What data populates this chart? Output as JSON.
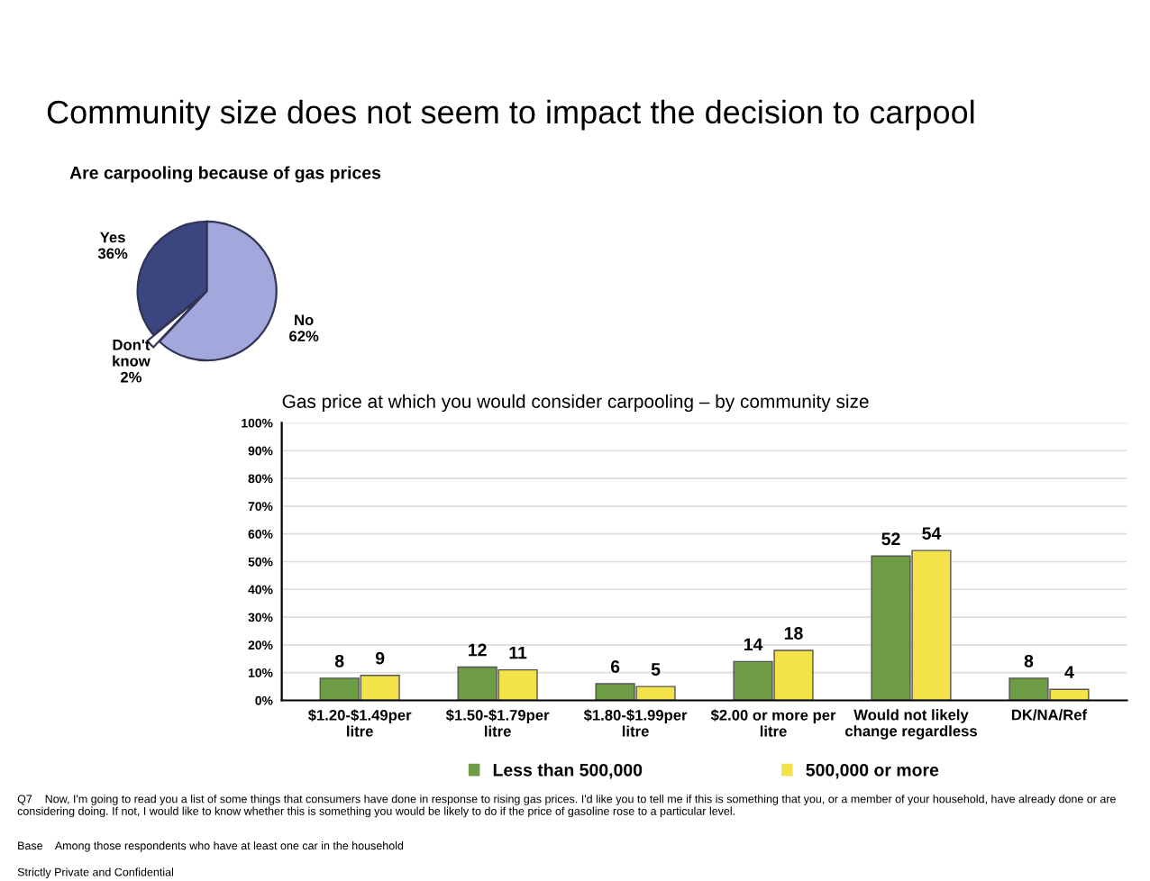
{
  "chart_data": [
    {
      "type": "pie",
      "title": "Are carpooling because of gas prices",
      "categories": [
        "Yes",
        "Don't\nknow",
        "No"
      ],
      "values": [
        36,
        2,
        62
      ],
      "value_labels": [
        "36%",
        "2%",
        "62%"
      ],
      "colors": [
        "#3b4680",
        "#ffffff",
        "#a3a8dc"
      ],
      "annotations": [
        "Community size does not seem to impact the decision to carpool"
      ]
    },
    {
      "type": "bar",
      "title": "Gas price at which you would consider carpooling",
      "subtitle": "– by community size",
      "categories": [
        "$1.20-$1.49per litre",
        "$1.50-$1.79per litre",
        "$1.80-$1.99per litre",
        "$2.00 or more per litre",
        "Would not likely change regardless",
        "DK/NA/Ref"
      ],
      "series": [
        {
          "name": "Less than 500,000",
          "color": "#6e9c45",
          "values": [
            8,
            12,
            6,
            14,
            52,
            8
          ]
        },
        {
          "name": "500,000 or more",
          "color": "#f3e24a",
          "values": [
            9,
            11,
            5,
            18,
            54,
            4
          ]
        }
      ],
      "ylim": [
        0,
        100
      ],
      "yticks": [
        {
          "value": 0,
          "label": "0%"
        },
        {
          "value": 10,
          "label": "10%"
        },
        {
          "value": 20,
          "label": "20%"
        },
        {
          "value": 30,
          "label": "30%"
        },
        {
          "value": 40,
          "label": "40%"
        },
        {
          "value": 50,
          "label": "50%"
        },
        {
          "value": 60,
          "label": "60%"
        },
        {
          "value": 70,
          "label": "70%"
        },
        {
          "value": 80,
          "label": "80%"
        },
        {
          "value": 90,
          "label": "90%"
        },
        {
          "value": 100,
          "label": "100%"
        }
      ],
      "grid": "y",
      "legend": "bottom",
      "data_labels": true,
      "annotations": [
        "Q7    Now, I'm going to read you a list of some things that consumers have done in response to rising gas prices. I'd like you to tell me if this is something that you, or a member of your household, have already done or are considering doing. If not, I would like to know whether this is something you would be likely to do if the price of gasoline rose to a particular level.",
        "Base    Among those respondents who have at least one car in the household",
        "Strictly Private and Confidential"
      ]
    }
  ]
}
